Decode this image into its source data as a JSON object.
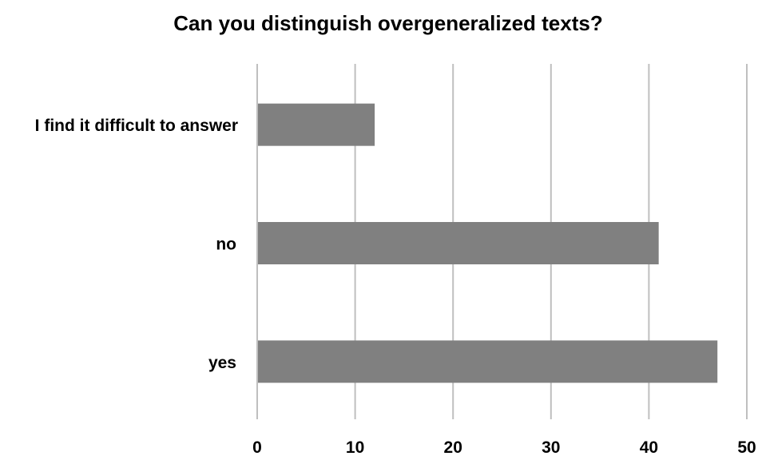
{
  "chart_data": {
    "type": "bar",
    "orientation": "horizontal",
    "title": "Can you distinguish overgeneralized texts?",
    "categories": [
      "I find it difficult to answer",
      "no",
      "yes"
    ],
    "values": [
      12,
      41,
      47
    ],
    "xlabel": "",
    "ylabel": "",
    "xlim": [
      0,
      50
    ],
    "ticks": [
      "0",
      "10",
      "20",
      "30",
      "40",
      "50"
    ],
    "tick_values": [
      0,
      10,
      20,
      30,
      40,
      50
    ],
    "grid": true,
    "legend": "none",
    "colors": {
      "bar": "#808080",
      "gridline": "#bfbfbf",
      "text": "#000000"
    }
  }
}
